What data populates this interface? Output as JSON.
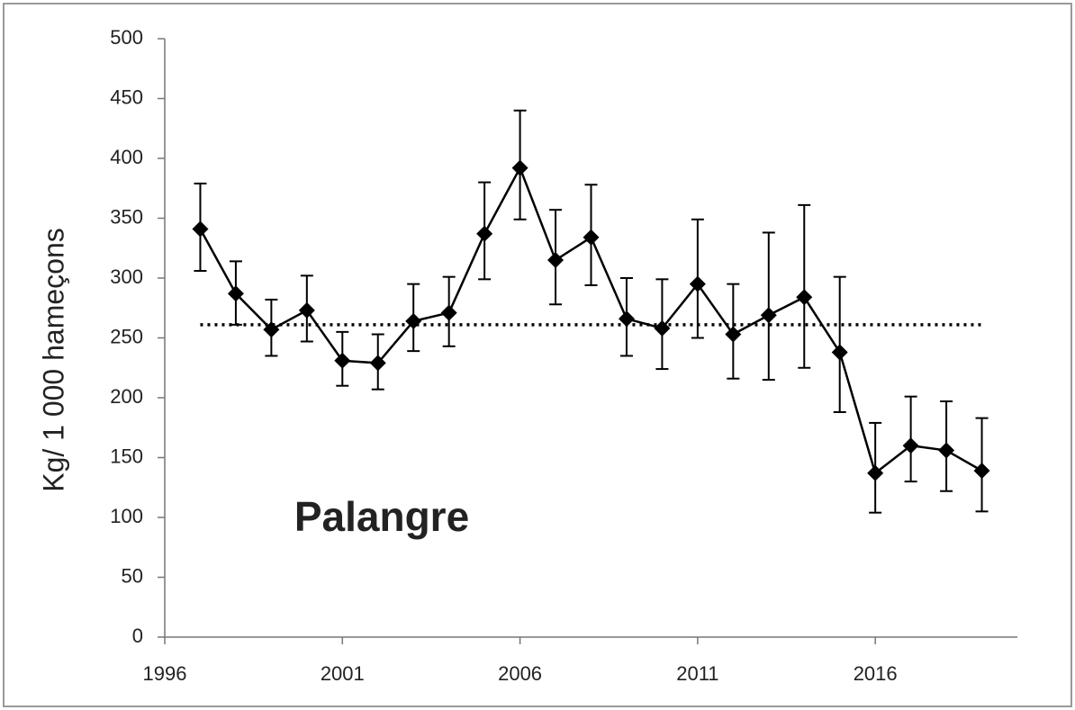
{
  "chart_data": {
    "type": "line",
    "annotation": "Palangre",
    "y_label": "Kg/ 1 000 hameçons",
    "x": [
      1997,
      1998,
      1999,
      2000,
      2001,
      2002,
      2003,
      2004,
      2005,
      2006,
      2007,
      2008,
      2009,
      2010,
      2011,
      2012,
      2013,
      2014,
      2015,
      2016,
      2017,
      2018,
      2019
    ],
    "series": [
      {
        "color": "#000000",
        "values": [
          341,
          287,
          257,
          273,
          231,
          229,
          264,
          271,
          337,
          392,
          315,
          334,
          266,
          258,
          295,
          253,
          269,
          284,
          238,
          137,
          160,
          156,
          139
        ],
        "upper": [
          379,
          314,
          282,
          302,
          255,
          253,
          295,
          301,
          380,
          440,
          357,
          378,
          300,
          299,
          349,
          295,
          338,
          361,
          301,
          179,
          201,
          197,
          183
        ],
        "lower": [
          306,
          261,
          235,
          247,
          210,
          207,
          239,
          243,
          299,
          349,
          278,
          294,
          235,
          224,
          250,
          216,
          215,
          225,
          188,
          104,
          130,
          122,
          105
        ]
      }
    ],
    "reference_line": 261,
    "xlim": [
      1996,
      2020
    ],
    "xticks": [
      1996,
      2001,
      2006,
      2011,
      2016
    ],
    "ylim": [
      0,
      500
    ],
    "yticks": [
      0,
      50,
      100,
      150,
      200,
      250,
      300,
      350,
      400,
      450,
      500
    ],
    "grid": false
  }
}
